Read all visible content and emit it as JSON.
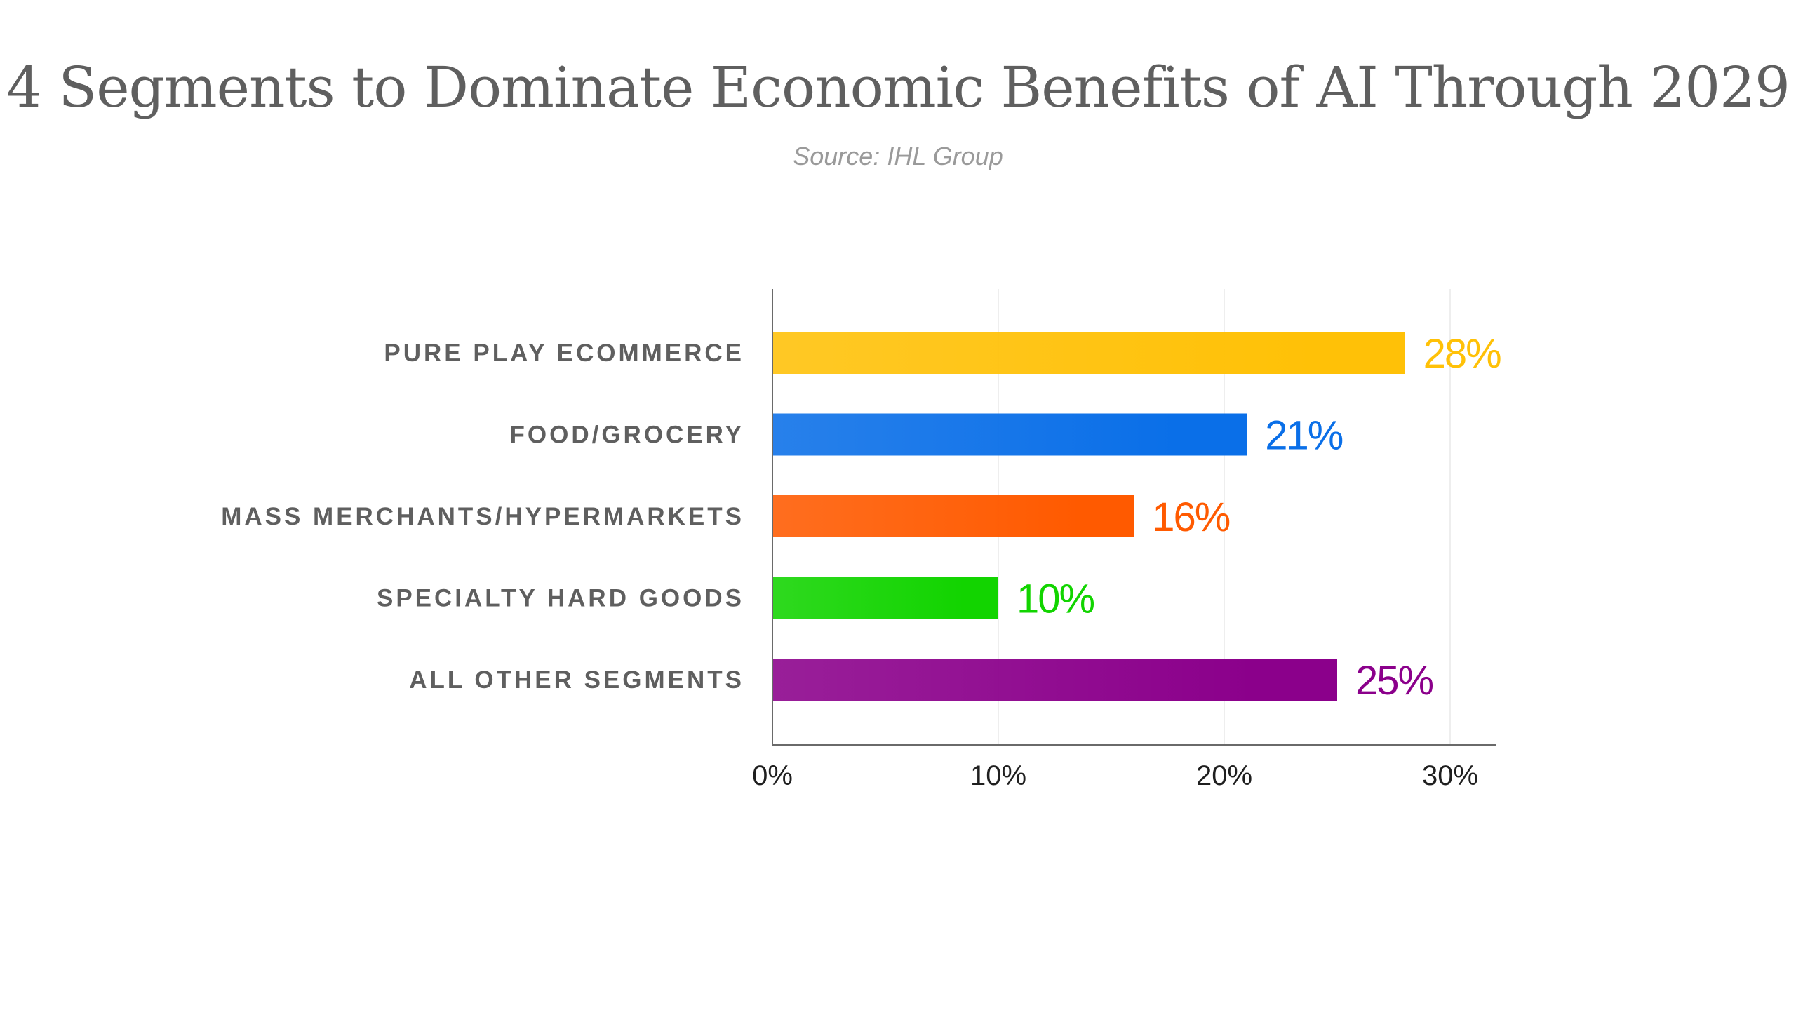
{
  "chart_data": {
    "type": "bar",
    "orientation": "horizontal",
    "title": "4 Segments to Dominate Economic Benefits of AI Through 2029",
    "subtitle": "Source: IHL Group",
    "categories": [
      "PURE PLAY ECOMMERCE",
      "FOOD/GROCERY",
      "MASS MERCHANTS/HYPERMARKETS",
      "SPECIALTY HARD GOODS",
      "ALL OTHER SEGMENTS"
    ],
    "values": [
      28,
      21,
      16,
      10,
      25
    ],
    "value_labels": [
      "28%",
      "21%",
      "16%",
      "10%",
      "25%"
    ],
    "colors": [
      "#ffc107",
      "#0a6fe8",
      "#ff5a00",
      "#12d400",
      "#8b008b"
    ],
    "xlim": [
      0,
      32
    ],
    "xticks": [
      0,
      10,
      20,
      30
    ],
    "xtick_labels": [
      "0%",
      "10%",
      "20%",
      "30%"
    ],
    "xlabel": "",
    "ylabel": "",
    "grid": "vertical",
    "legend": "none"
  }
}
